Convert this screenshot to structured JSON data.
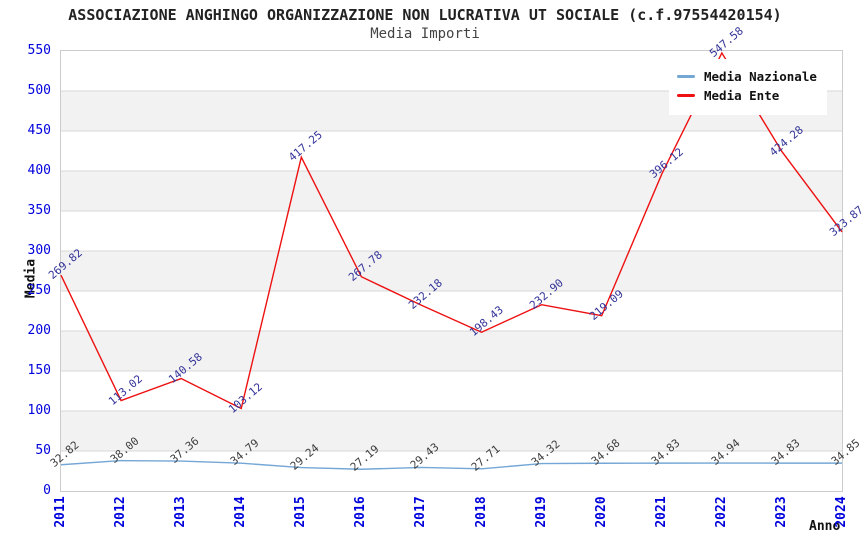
{
  "header": {
    "title": "ASSOCIAZIONE ANGHINGO ORGANIZZAZIONE NON LUCRATIVA UT SOCIALE (c.f.97554420154)",
    "subtitle": "Media Importi"
  },
  "chart_data": {
    "type": "line",
    "x": [
      "2011",
      "2012",
      "2013",
      "2014",
      "2015",
      "2016",
      "2017",
      "2018",
      "2019",
      "2020",
      "2021",
      "2022",
      "2023",
      "2024"
    ],
    "xlabel": "Anno",
    "ylabel": "Media",
    "ylim": [
      0,
      550
    ],
    "ytick_step": 50,
    "grid": true,
    "bands": true,
    "legend_position": "top-right",
    "series": [
      {
        "name": "Media Nazionale",
        "color": "#74a7d6",
        "label_color": "#3d3d3d",
        "values": [
          32.82,
          38.0,
          37.36,
          34.79,
          29.24,
          27.19,
          29.43,
          27.71,
          34.32,
          34.68,
          34.83,
          34.94,
          34.83,
          34.85
        ]
      },
      {
        "name": "Media Ente",
        "color": "#ee1111",
        "label_color": "#333399",
        "values": [
          269.82,
          113.02,
          140.58,
          103.12,
          417.25,
          267.78,
          232.18,
          198.43,
          232.9,
          219.09,
          396.12,
          547.58,
          424.28,
          323.87
        ]
      }
    ]
  },
  "colors": {
    "background": "#ffffff",
    "band_gray": "#f2f2f2",
    "grid_line": "#d8d8d8",
    "plot_border": "#cccccc",
    "tick_label": "#0000dd",
    "title": "#222222",
    "subtitle": "#444444",
    "axis_title": "#111111"
  }
}
